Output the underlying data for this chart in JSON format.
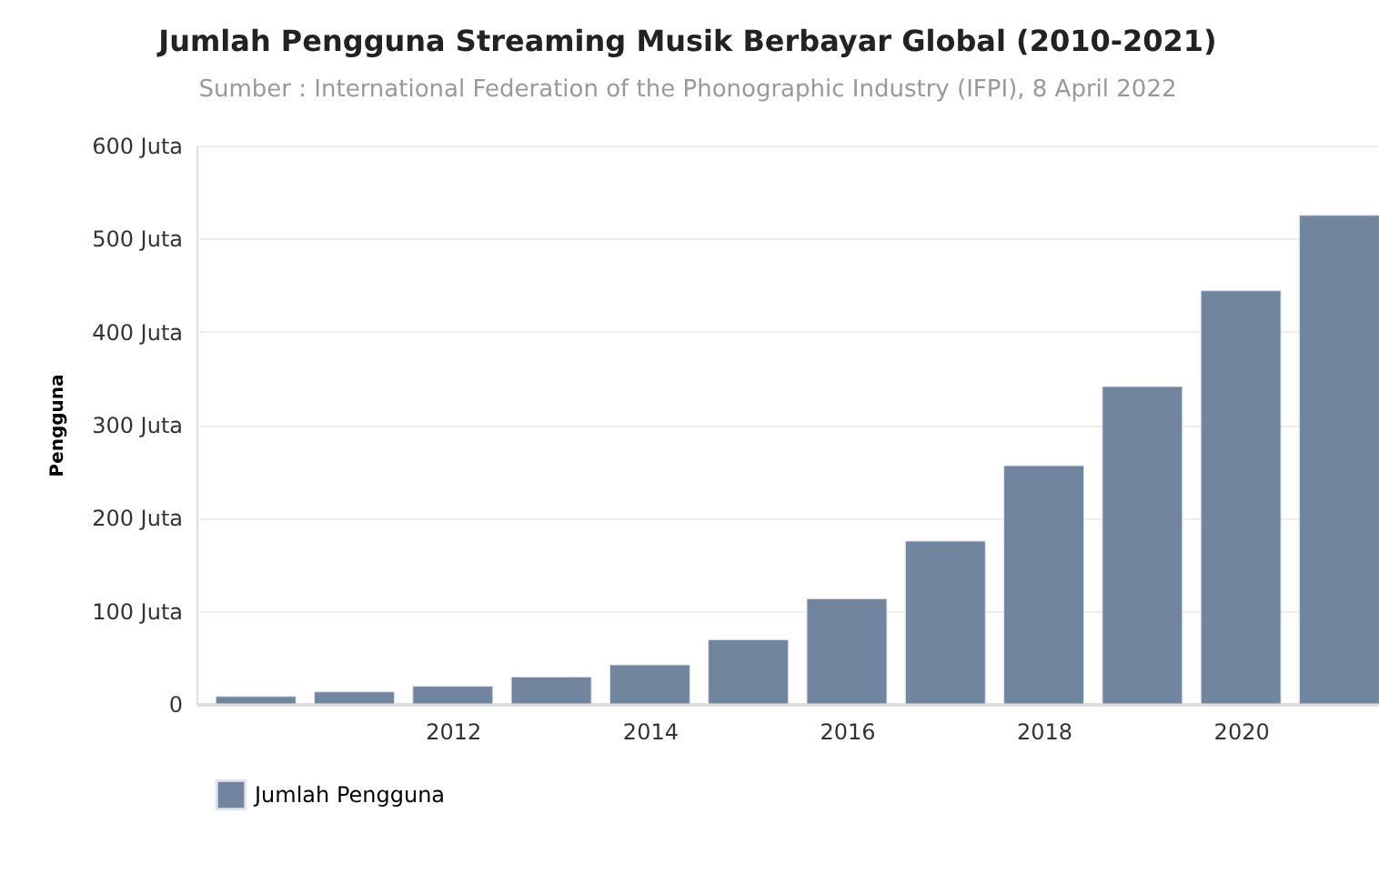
{
  "chart_data": {
    "type": "bar",
    "title": "Jumlah Pengguna Streaming Musik Berbayar Global (2010-2021)",
    "subtitle": "Sumber : International Federation of the Phonographic Industry (IFPI), 8 April 2022",
    "ylabel": "Pengguna",
    "x": [
      2010,
      2011,
      2012,
      2013,
      2014,
      2015,
      2016,
      2017,
      2018,
      2019,
      2020,
      2021
    ],
    "series": [
      {
        "name": "Jumlah Pengguna",
        "color": "#72859f",
        "values": [
          8,
          13,
          19,
          29,
          42,
          69,
          113,
          175,
          256,
          341,
          444,
          525
        ]
      }
    ],
    "xlim": [
      2009.49,
      2021.31
    ],
    "xticks": [
      2012,
      2014,
      2016,
      2018,
      2020
    ],
    "ylim": [
      0,
      600
    ],
    "yticks": [
      {
        "value": 0,
        "label": "0"
      },
      {
        "value": 100,
        "label": "100 Juta"
      },
      {
        "value": 200,
        "label": "200 Juta"
      },
      {
        "value": 300,
        "label": "300 Juta"
      },
      {
        "value": 400,
        "label": "400 Juta"
      },
      {
        "value": 500,
        "label": "500 Juta"
      },
      {
        "value": 600,
        "label": "600 Juta"
      }
    ],
    "grid": "y",
    "legend": "bottom left"
  }
}
